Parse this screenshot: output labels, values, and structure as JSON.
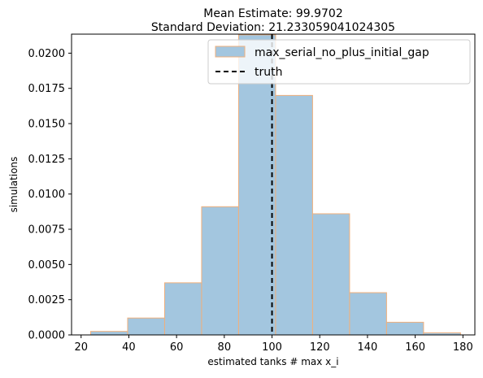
{
  "chart_data": {
    "type": "bar",
    "title": "Mean Estimate: 99.9702",
    "subtitle": "Standard Deviation: 21.233059041024305",
    "xlabel": "estimated tanks # max x_i",
    "ylabel": "simulations",
    "xlim": [
      16,
      185
    ],
    "ylim": [
      0,
      0.02135
    ],
    "xticks": [
      20,
      40,
      60,
      80,
      100,
      120,
      140,
      160,
      180
    ],
    "yticks": [
      0.0,
      0.0025,
      0.005,
      0.0075,
      0.01,
      0.0125,
      0.015,
      0.0175,
      0.02
    ],
    "ytick_labels": [
      "0.0000",
      "0.0025",
      "0.0050",
      "0.0075",
      "0.0100",
      "0.0125",
      "0.0150",
      "0.0175",
      "0.0200"
    ],
    "bin_edges": [
      24,
      39.5,
      55,
      70.5,
      86,
      101.5,
      117,
      132.5,
      148,
      163.5,
      179
    ],
    "series": [
      {
        "name": "max_serial_no_plus_initial_gap",
        "values": [
          0.00025,
          0.0012,
          0.0037,
          0.0091,
          0.0213,
          0.017,
          0.0086,
          0.003,
          0.0009,
          0.00015
        ],
        "fill": "#a3c6df",
        "edge": "#f0b07c"
      }
    ],
    "reference_line": {
      "name": "truth",
      "x": 100,
      "style": "dashed",
      "color": "#000000"
    },
    "legend_position": "top-right",
    "grid": false
  }
}
